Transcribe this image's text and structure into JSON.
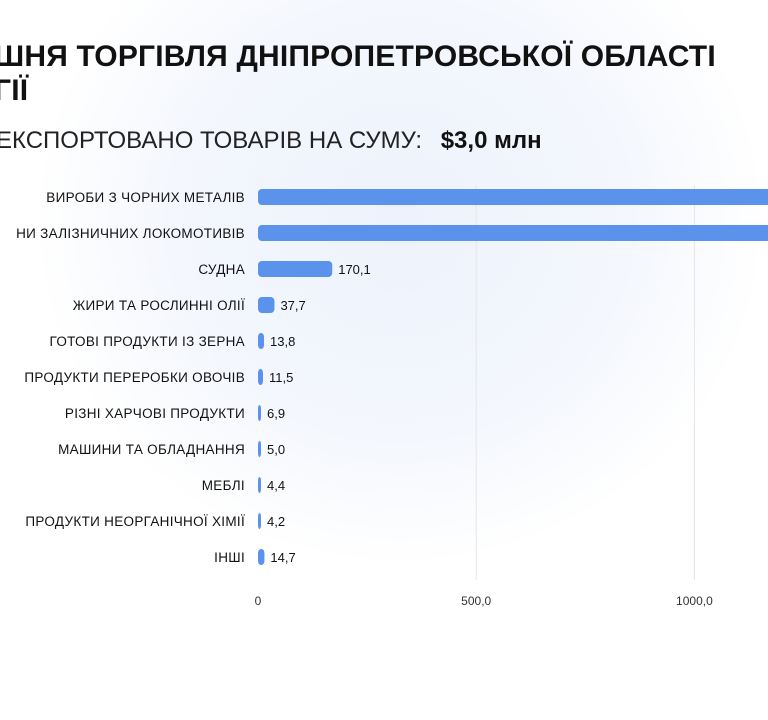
{
  "title_lines": [
    "ШНЯ ТОРГІВЛЯ ДНІПРОПЕТРОВСЬКОЇ ОБЛАСТІ",
    "ГІЇ"
  ],
  "subtitle": {
    "label": "ЕКСПОРТОВАНО ТОВАРІВ НА СУМУ:",
    "total": "$3,0 млн"
  },
  "colors": {
    "bar": "#5b93ec",
    "grid": "#e6e6e6",
    "text": "#121212",
    "tick": "#333333"
  },
  "chart_data": {
    "type": "bar",
    "orientation": "horizontal",
    "categories": [
      "ВИРОБИ З ЧОРНИХ МЕТАЛІВ",
      "НИ ЗАЛІЗНИЧНИХ ЛОКОМОТИВІВ",
      "СУДНА",
      "ЖИРИ ТА РОСЛИННІ ОЛІЇ",
      "ГОТОВІ ПРОДУКТИ ІЗ ЗЕРНА",
      "ПРОДУКТИ ПЕРЕРОБКИ ОВОЧІВ",
      "РІЗНІ ХАРЧОВІ ПРОДУКТИ",
      "МАШИНИ ТА ОБЛАДНАННЯ",
      "МЕБЛІ",
      "ПРОДУКТИ НЕОРГАНІЧНОЇ ХІМІЇ",
      "ІНШІ"
    ],
    "values": [
      1300,
      1300,
      170.1,
      37.7,
      13.8,
      11.5,
      6.9,
      5.0,
      4.4,
      4.2,
      14.7
    ],
    "value_labels": [
      "",
      "",
      "170,1",
      "37,7",
      "13,8",
      "11,5",
      "6,9",
      "5,0",
      "4,4",
      "4,2",
      "14,7"
    ],
    "x_ticks": [
      0,
      500,
      1000
    ],
    "x_tick_labels": [
      "0",
      "500,0",
      "1000,0"
    ],
    "xlim": [
      0,
      1150
    ],
    "grid": true
  }
}
